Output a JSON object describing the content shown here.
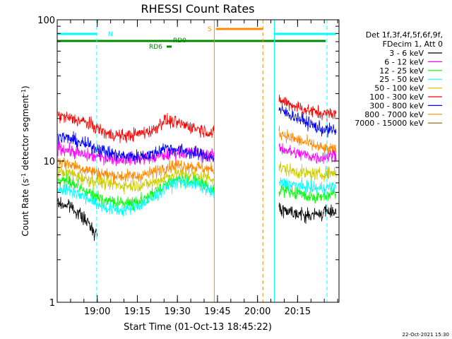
{
  "chart_data": {
    "type": "line",
    "title": "RHESSI Count Rates",
    "xlabel": "Start Time (01-Oct-13 18:45:22)",
    "ylabel_main": "Count Rate (s",
    "ylabel_sup1": "-1",
    "ylabel_mid": " detector segment",
    "ylabel_sup2": "-1",
    "ylabel_end": ")",
    "yscale": "log",
    "ylim": [
      1,
      100
    ],
    "xlim_minutes": [
      0,
      105.5
    ],
    "y_ticks": [
      {
        "value": 1,
        "label": "1"
      },
      {
        "value": 10,
        "label": "10"
      },
      {
        "value": 100,
        "label": "100"
      }
    ],
    "x_ticks": [
      {
        "t": 15.0,
        "label": "19:00"
      },
      {
        "t": 30.0,
        "label": "19:15"
      },
      {
        "t": 45.0,
        "label": "19:30"
      },
      {
        "t": 60.0,
        "label": "19:45"
      },
      {
        "t": 75.0,
        "label": "20:00"
      },
      {
        "t": 90.0,
        "label": "20:15"
      }
    ],
    "legend": {
      "placement": "right",
      "header_line1": "Det 1f,3f,4f,5f,6f,9f,",
      "header_line2": "FDecim 1, Att 0"
    },
    "series": [
      {
        "name": "3 - 6 keV",
        "color": "#000000",
        "x": [
          0,
          5,
          10,
          15,
          19,
          25,
          30,
          36,
          40,
          45,
          50,
          55,
          58.8,
          77.0,
          83.0,
          88,
          93,
          98,
          101,
          104.5
        ],
        "values": [
          5.0,
          4.8,
          3.9,
          3.0,
          null,
          null,
          null,
          null,
          null,
          null,
          null,
          null,
          null,
          null,
          4.6,
          4.4,
          4.1,
          4.2,
          4.4,
          4.4
        ]
      },
      {
        "name": "6 - 12 keV",
        "color": "#ff00ff",
        "x": [
          0,
          5,
          10,
          15,
          19,
          25,
          30,
          36,
          40,
          45,
          50,
          55,
          58.8,
          77.0,
          83.0,
          88,
          93,
          98,
          101,
          104.5
        ],
        "values": [
          12.5,
          11.8,
          11.0,
          10.8,
          10.5,
          10.3,
          10.4,
          10.6,
          11.0,
          11.5,
          11.5,
          11.2,
          10.8,
          null,
          12.5,
          11.5,
          11.0,
          10.5,
          10.8,
          11.2
        ]
      },
      {
        "name": "12 - 25 keV",
        "color": "#00ff00",
        "x": [
          0,
          5,
          10,
          15,
          19,
          25,
          30,
          36,
          40,
          45,
          50,
          55,
          58.8,
          77.0,
          83.0,
          88,
          93,
          98,
          101,
          104.5
        ],
        "values": [
          7.5,
          7.0,
          6.2,
          5.5,
          5.2,
          5.0,
          5.2,
          5.8,
          6.8,
          7.5,
          7.3,
          6.8,
          6.2,
          null,
          6.4,
          6.0,
          5.7,
          5.5,
          5.8,
          6.0
        ]
      },
      {
        "name": "25 - 50 keV",
        "color": "#00ffff",
        "x": [
          0,
          5,
          10,
          15,
          19,
          25,
          30,
          36,
          40,
          45,
          50,
          55,
          58.8,
          77.0,
          83.0,
          88,
          93,
          98,
          101,
          104.5
        ],
        "values": [
          6.5,
          6.2,
          5.6,
          5.0,
          4.6,
          4.5,
          4.8,
          5.4,
          6.4,
          7.2,
          7.0,
          6.5,
          5.8,
          null,
          7.0,
          6.8,
          6.5,
          6.4,
          6.5,
          6.6
        ]
      },
      {
        "name": "50 - 100 keV",
        "color": "#cccc00",
        "x": [
          0,
          5,
          10,
          15,
          19,
          25,
          30,
          36,
          40,
          45,
          50,
          55,
          58.8,
          77.0,
          83.0,
          88,
          93,
          98,
          101,
          104.5
        ],
        "values": [
          8.5,
          8.2,
          7.5,
          7.2,
          6.9,
          6.7,
          6.7,
          7.0,
          7.6,
          8.2,
          8.0,
          7.8,
          7.5,
          null,
          9.0,
          8.5,
          8.2,
          8.0,
          8.2,
          8.3
        ]
      },
      {
        "name": "100 - 300 keV",
        "color": "#ff0000",
        "x": [
          0,
          5,
          10,
          15,
          19,
          25,
          30,
          36,
          40,
          45,
          50,
          55,
          58.8,
          77.0,
          83.0,
          88,
          93,
          98,
          101,
          104.5
        ],
        "values": [
          21,
          20,
          19,
          17,
          15.5,
          15.0,
          15.5,
          16.5,
          19.5,
          18.5,
          17.5,
          16.5,
          15.5,
          null,
          27,
          25,
          23,
          22,
          21.5,
          22
        ]
      },
      {
        "name": "300 - 800 keV",
        "color": "#0000ff",
        "x": [
          0,
          5,
          10,
          15,
          19,
          25,
          30,
          36,
          40,
          45,
          50,
          55,
          58.8,
          77.0,
          83.0,
          88,
          93,
          98,
          101,
          104.5
        ],
        "values": [
          15,
          14.3,
          13.2,
          12.3,
          11.5,
          10.8,
          10.8,
          11.2,
          12.5,
          12.0,
          11.5,
          11.0,
          10.5,
          null,
          23,
          21,
          19,
          17,
          16.5,
          16.5
        ]
      },
      {
        "name": "800 - 7000 keV",
        "color": "#ff8800",
        "x": [
          0,
          5,
          10,
          15,
          19,
          25,
          30,
          36,
          40,
          45,
          50,
          55,
          58.8,
          77.0,
          83.0,
          88,
          93,
          98,
          101,
          104.5
        ],
        "values": [
          10,
          9.5,
          8.8,
          8.3,
          8.0,
          7.8,
          7.8,
          8.3,
          9.0,
          9.4,
          9.2,
          8.9,
          8.6,
          null,
          16,
          14.5,
          13.5,
          12.5,
          12.0,
          12.0
        ]
      },
      {
        "name": "7000 - 15000 keV",
        "color": "#886600",
        "x": [
          0,
          5,
          10,
          15,
          19,
          25,
          30,
          36,
          40,
          45,
          50,
          55,
          58.8,
          77.0,
          83.0,
          88,
          93,
          98,
          101,
          104.5
        ],
        "values": [
          null,
          null,
          null,
          null,
          null,
          null,
          null,
          null,
          null,
          null,
          null,
          null,
          null,
          null,
          null,
          null,
          null,
          null,
          null,
          null
        ]
      }
    ],
    "annotations": {
      "n_label": "N",
      "s_label": "S",
      "rd0_label": "RD0",
      "rd6_label": "RD6",
      "night_bars_minutes": [
        [
          0,
          14.8
        ],
        [
          81.3,
          104.5
        ]
      ],
      "saa_bar_minutes": [
        59.5,
        77.0
      ],
      "vertical_markers": [
        {
          "t": 0.0,
          "color": "#00ffff",
          "style": "solid"
        },
        {
          "t": 14.8,
          "color": "#00ffff",
          "style": "dashed"
        },
        {
          "t": 58.8,
          "color": "#ff8800",
          "style": "solid"
        },
        {
          "t": 77.0,
          "color": "#ff8800",
          "style": "dashed"
        },
        {
          "t": 81.3,
          "color": "#00ffff",
          "style": "solid"
        },
        {
          "t": 101.0,
          "color": "#00ffff",
          "style": "dashed"
        }
      ]
    },
    "footer_timestamp": "22-Oct-2021 15:30"
  }
}
